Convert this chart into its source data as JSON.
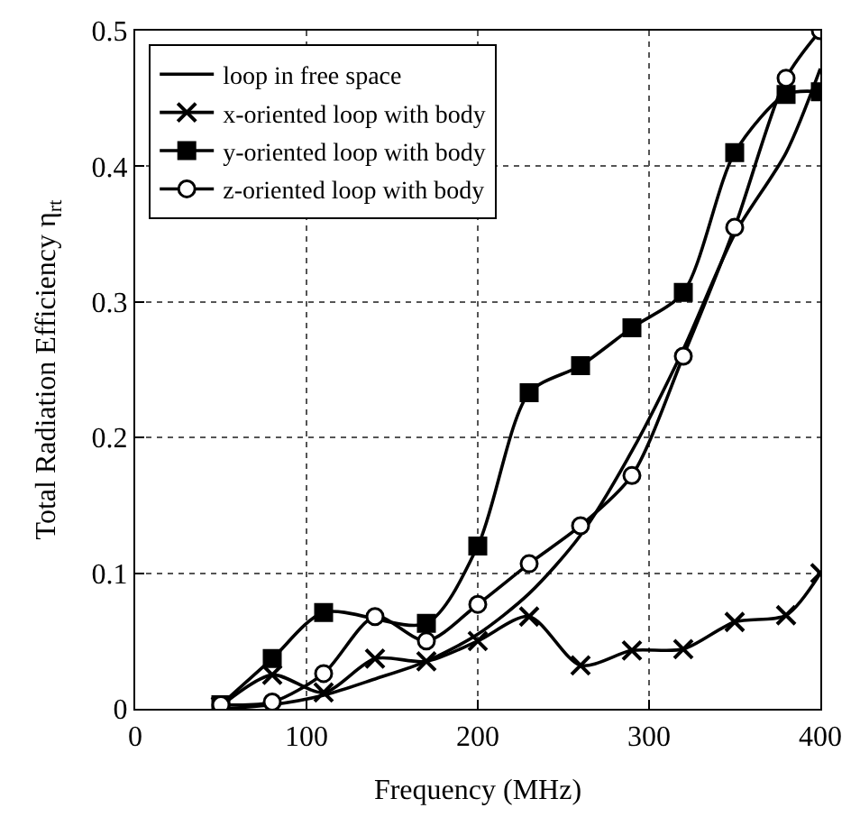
{
  "chart_data": {
    "type": "line",
    "xlabel": "Frequency (MHz)",
    "ylabel": "Total Radiation Efficiency η$_{rt}$",
    "x": [
      50,
      80,
      110,
      140,
      170,
      200,
      230,
      260,
      290,
      320,
      350,
      380,
      400
    ],
    "series": [
      {
        "name": "loop in free space",
        "color": "#000000",
        "marker": "none",
        "values": [
          0.0,
          0.003,
          0.01,
          0.022,
          0.035,
          0.055,
          0.085,
          0.128,
          0.19,
          0.265,
          0.35,
          0.41,
          0.472
        ]
      },
      {
        "name": "x-oriented loop with body",
        "color": "#000000",
        "marker": "cross",
        "values": [
          0.002,
          0.025,
          0.012,
          0.037,
          0.035,
          0.05,
          0.068,
          0.032,
          0.043,
          0.044,
          0.064,
          0.069,
          0.1
        ]
      },
      {
        "name": "y-oriented loop with body",
        "color": "#000000",
        "marker": "square",
        "x": [
          50,
          80,
          110,
          170,
          200,
          230,
          260,
          290,
          320,
          350,
          380,
          400
        ],
        "values": [
          0.003,
          0.037,
          0.071,
          0.063,
          0.12,
          0.233,
          0.253,
          0.281,
          0.307,
          0.41,
          0.453,
          0.455
        ]
      },
      {
        "name": "z-oriented loop with body",
        "color": "#000000",
        "marker": "circle",
        "values": [
          0.003,
          0.005,
          0.026,
          0.068,
          0.05,
          0.077,
          0.107,
          0.135,
          0.172,
          0.26,
          0.355,
          0.465,
          0.5
        ]
      }
    ],
    "xlim": [
      0,
      400
    ],
    "xticks": [
      0,
      100,
      200,
      300,
      400
    ],
    "ylim": [
      0,
      0.5
    ],
    "yticks": [
      0,
      0.1,
      0.2,
      0.3,
      0.4,
      0.5
    ],
    "grid": true,
    "legend": "top left",
    "line_style": "solid"
  }
}
